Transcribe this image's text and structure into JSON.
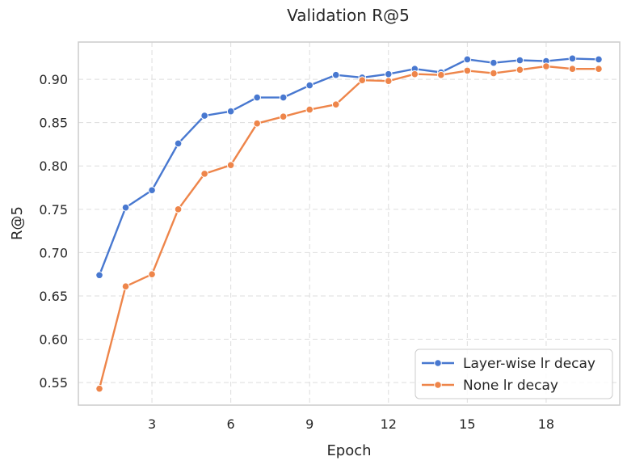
{
  "chart_data": {
    "type": "line",
    "title": "Validation R@5",
    "xlabel": "Epoch",
    "ylabel": "R@5",
    "x": [
      1,
      2,
      3,
      4,
      5,
      6,
      7,
      8,
      9,
      10,
      11,
      12,
      13,
      14,
      15,
      16,
      17,
      18,
      19,
      20
    ],
    "xlim": [
      0.2,
      20.8
    ],
    "ylim": [
      0.524,
      0.943
    ],
    "xticks": [
      3,
      6,
      9,
      12,
      15,
      18
    ],
    "xtick_labels": [
      "3",
      "6",
      "9",
      "12",
      "15",
      "18"
    ],
    "yticks": [
      0.55,
      0.6,
      0.65,
      0.7,
      0.75,
      0.8,
      0.85,
      0.9
    ],
    "ytick_labels": [
      "0.55",
      "0.60",
      "0.65",
      "0.70",
      "0.75",
      "0.80",
      "0.85",
      "0.90"
    ],
    "grid": true,
    "legend_position": "lower-right",
    "series": [
      {
        "name": "Layer-wise lr decay",
        "color": "#4878d0",
        "marker": "circle",
        "values": [
          0.674,
          0.752,
          0.772,
          0.826,
          0.858,
          0.863,
          0.879,
          0.879,
          0.893,
          0.905,
          0.902,
          0.906,
          0.912,
          0.908,
          0.923,
          0.919,
          0.922,
          0.921,
          0.924,
          0.923
        ]
      },
      {
        "name": "None lr decay",
        "color": "#ee854a",
        "marker": "circle",
        "values": [
          0.543,
          0.661,
          0.675,
          0.75,
          0.791,
          0.801,
          0.849,
          0.857,
          0.865,
          0.871,
          0.899,
          0.898,
          0.906,
          0.905,
          0.91,
          0.907,
          0.911,
          0.915,
          0.912,
          0.912
        ]
      }
    ],
    "colors": {
      "frame": "#cccccc",
      "grid": "#dddddd",
      "text": "#262626",
      "background": "#ffffff"
    }
  }
}
